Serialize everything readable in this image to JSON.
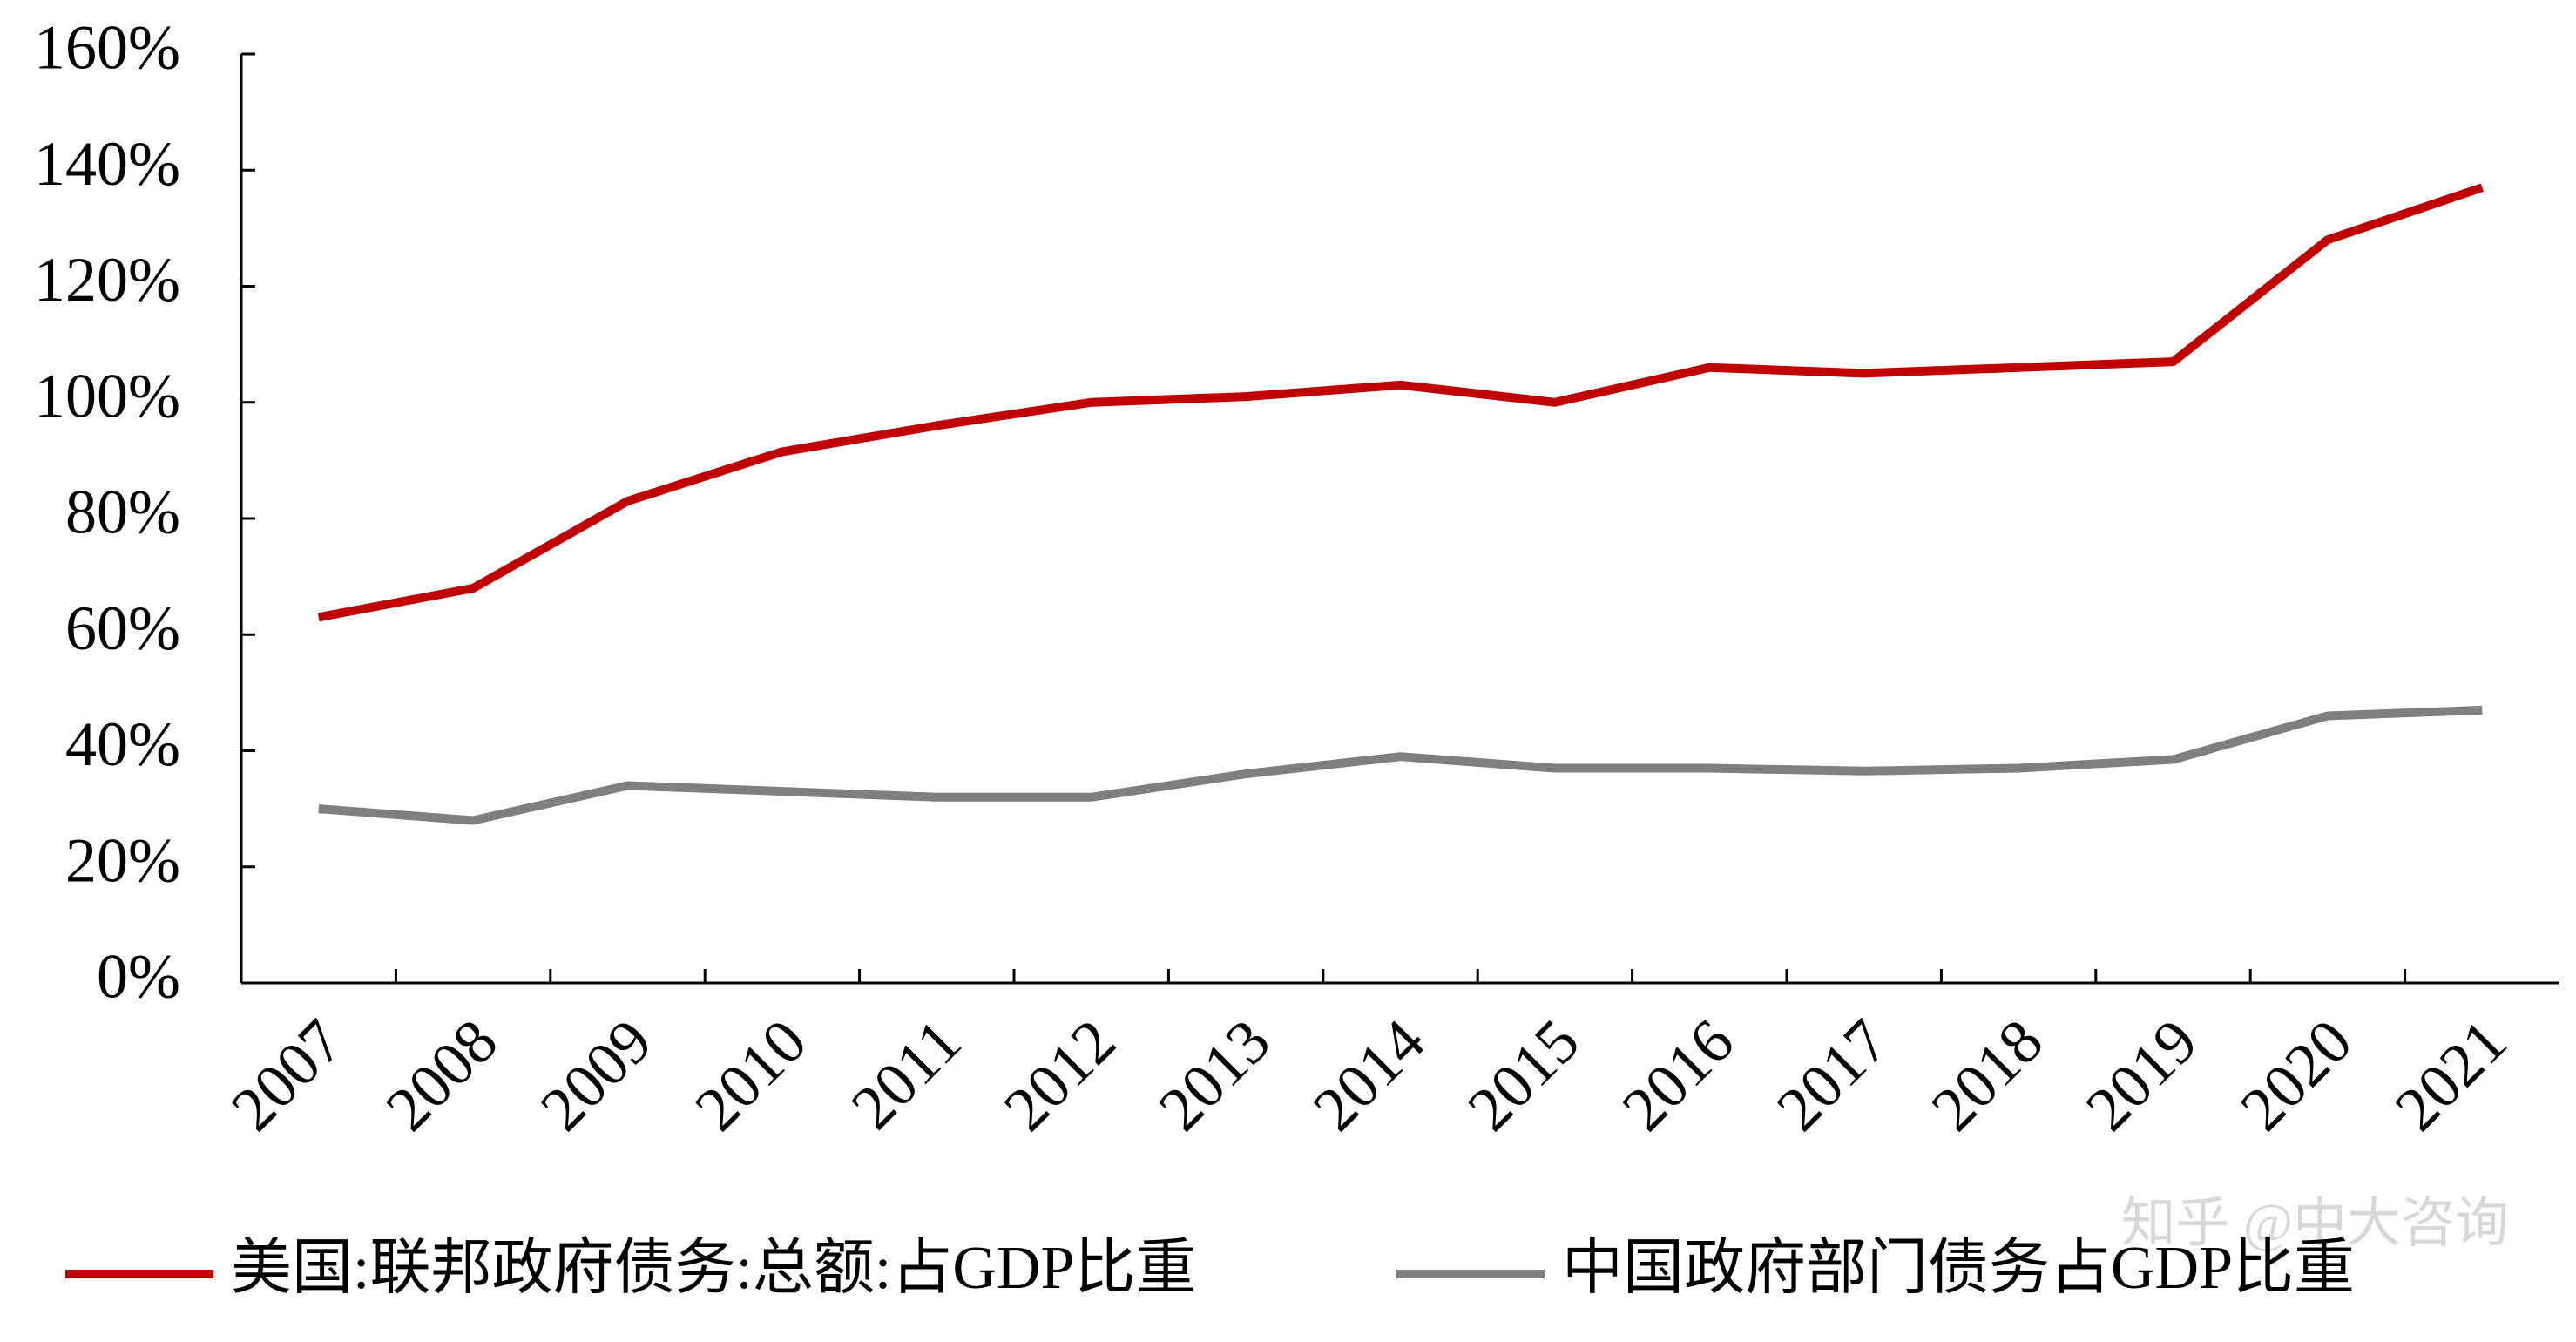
{
  "chart_data": {
    "type": "line",
    "categories": [
      "2007",
      "2008",
      "2009",
      "2010",
      "2011",
      "2012",
      "2013",
      "2014",
      "2015",
      "2016",
      "2017",
      "2018",
      "2019",
      "2020",
      "2021"
    ],
    "series": [
      {
        "name": "美国:联邦政府债务:总额:占GDP比重",
        "color": "#c00000",
        "values": [
          63,
          68,
          83,
          91.5,
          96,
          100,
          101,
          103,
          100,
          106,
          105,
          106,
          107,
          128,
          137
        ]
      },
      {
        "name": "中国政府部门债务占GDP比重",
        "color": "#7f7f7f",
        "values": [
          30,
          28,
          34,
          33,
          32,
          32,
          36,
          39,
          37,
          37,
          36.5,
          37,
          38.5,
          46,
          47
        ]
      }
    ],
    "ylim": [
      0,
      160
    ],
    "yticks": [
      {
        "value": 0,
        "label": "0%"
      },
      {
        "value": 20,
        "label": "20%"
      },
      {
        "value": 40,
        "label": "40%"
      },
      {
        "value": 60,
        "label": "60%"
      },
      {
        "value": 80,
        "label": "80%"
      },
      {
        "value": 100,
        "label": "100%"
      },
      {
        "value": 120,
        "label": "120%"
      },
      {
        "value": 140,
        "label": "140%"
      },
      {
        "value": 160,
        "label": "160%"
      }
    ],
    "grid": false,
    "legend": "bottom",
    "watermark": "知乎 @中大咨询"
  }
}
